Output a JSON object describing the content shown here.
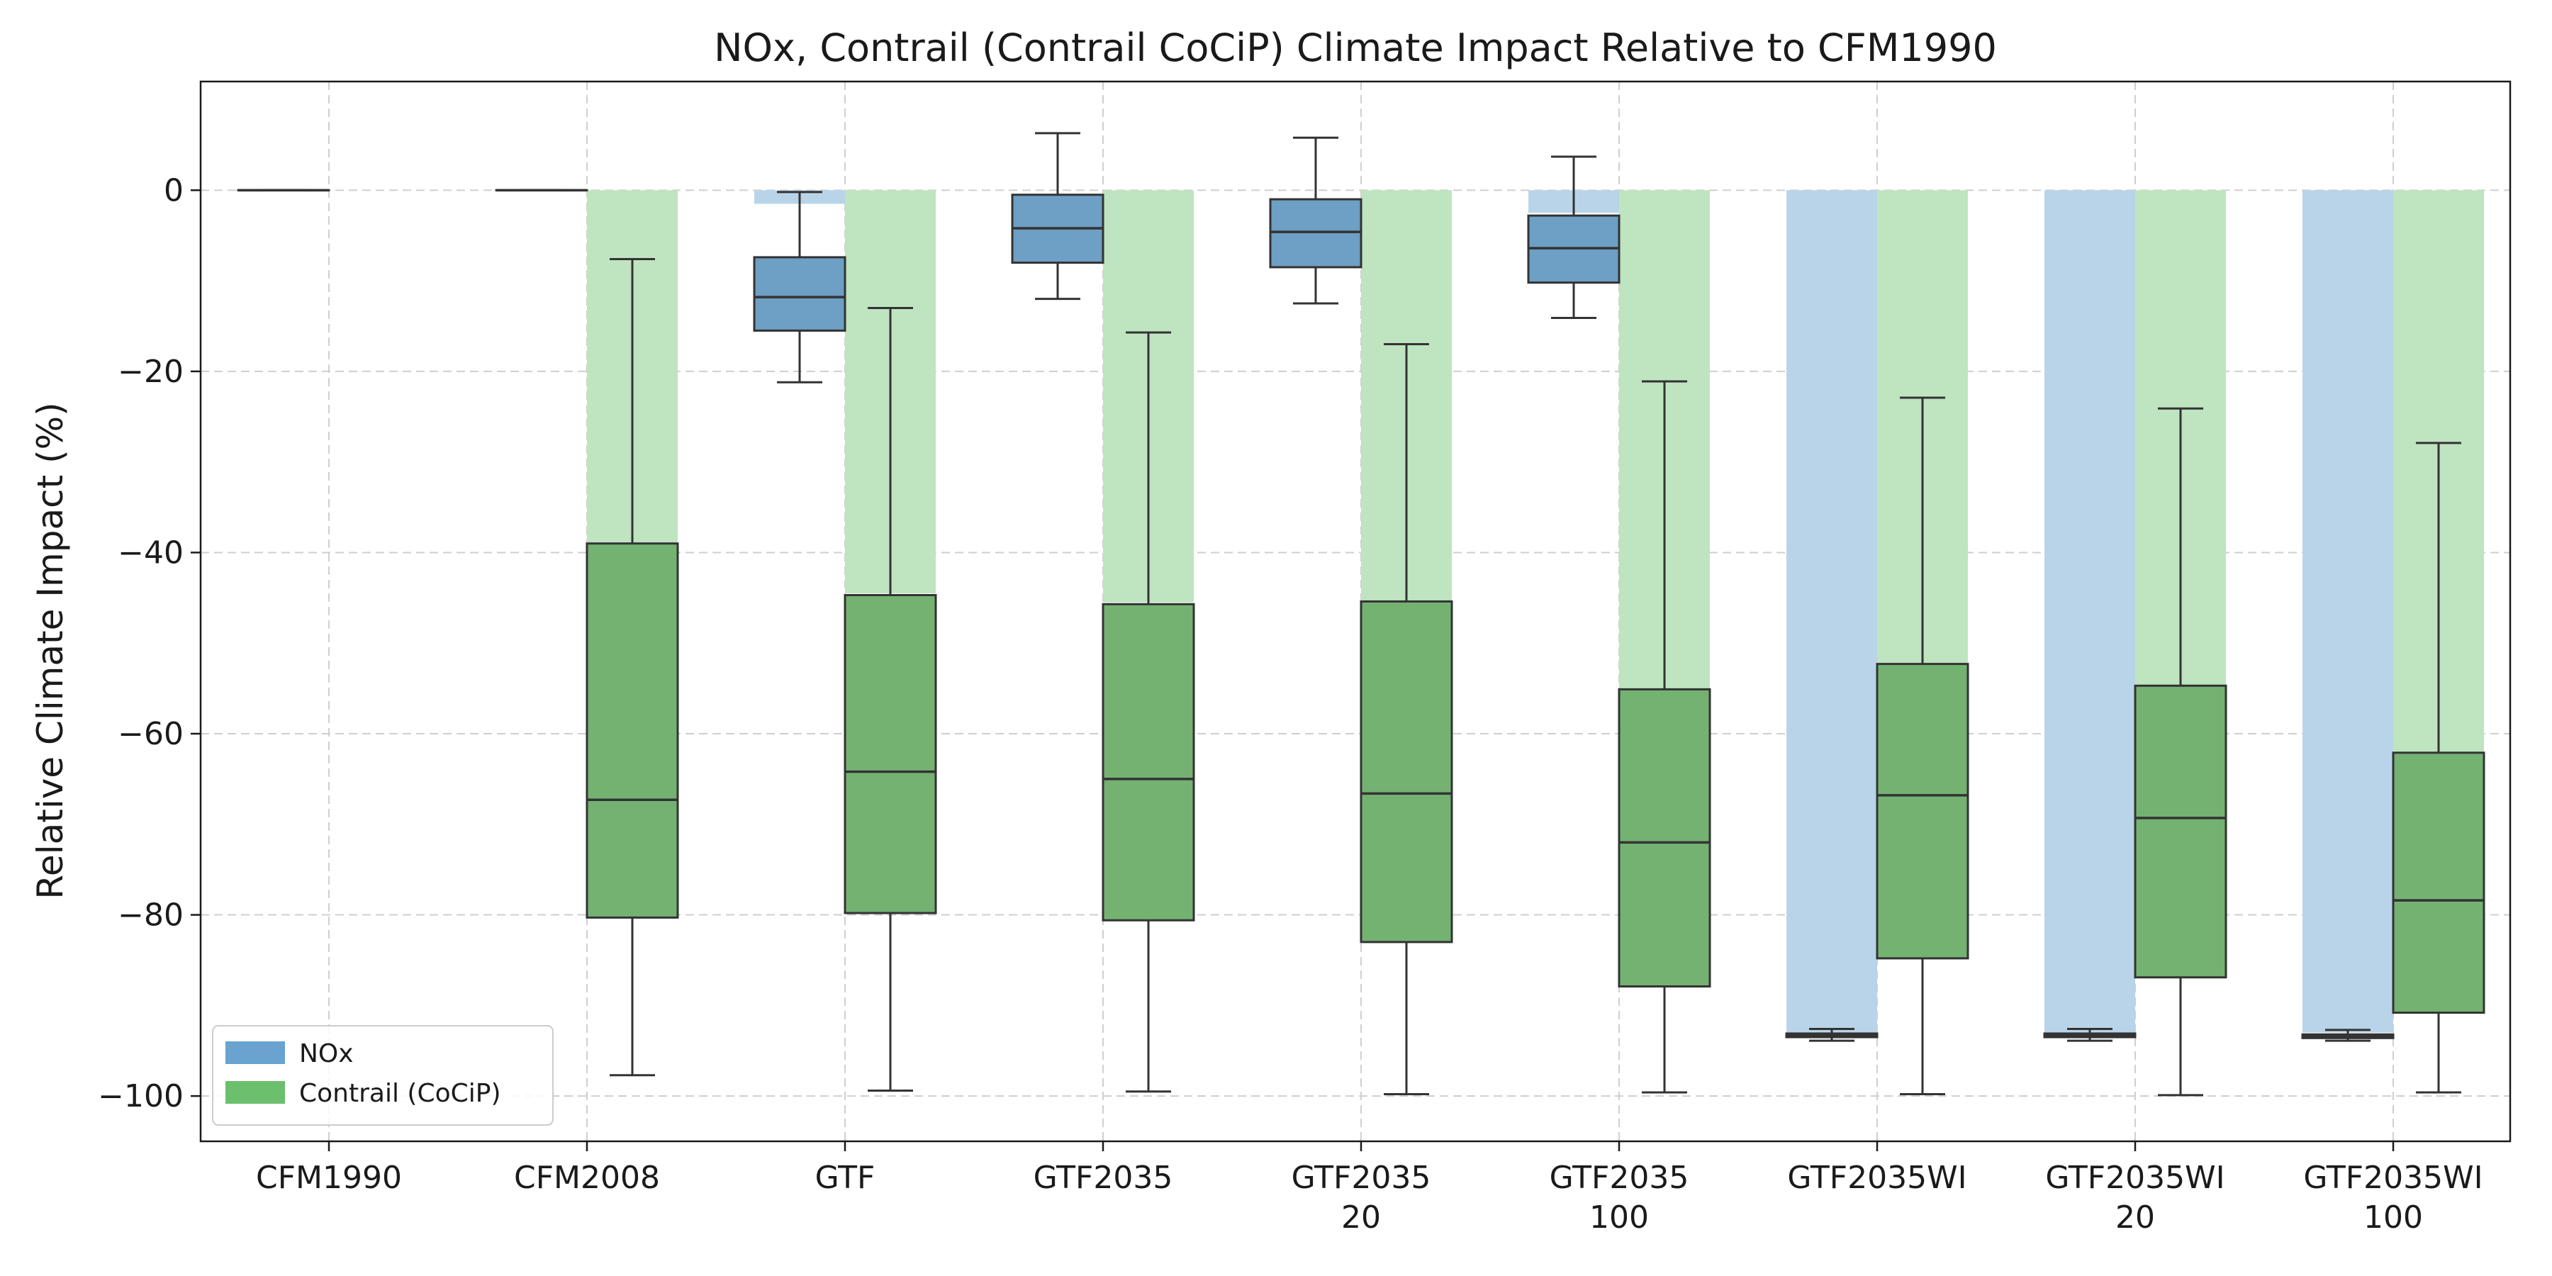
{
  "chart_data": {
    "type": "box",
    "title": "NOx, Contrail (Contrail CoCiP) Climate Impact Relative to CFM1990",
    "ylabel": "Relative Climate Impact (%)",
    "xlabel": "",
    "ylim": [
      -105,
      12
    ],
    "yticks": [
      0,
      -20,
      -40,
      -60,
      -80,
      -100
    ],
    "ytick_labels": [
      "0",
      "−20",
      "−40",
      "−60",
      "−80",
      "−100"
    ],
    "grid": true,
    "legend_position": "lower-left",
    "categories": [
      [
        "CFM1990"
      ],
      [
        "CFM2008"
      ],
      [
        "GTF"
      ],
      [
        "GTF2035"
      ],
      [
        "GTF2035",
        "20"
      ],
      [
        "GTF2035",
        "100"
      ],
      [
        "GTF2035WI"
      ],
      [
        "GTF2035WI",
        "20"
      ],
      [
        "GTF2035WI",
        "100"
      ]
    ],
    "series": [
      {
        "name": "NOx",
        "legend_color": "#6aa3d0",
        "box_color": "#6e9fc4",
        "bar_color": "#b9d4e8",
        "bars": [
          0,
          0,
          -1.5,
          0,
          0,
          -2.5,
          -93,
          -93,
          -93
        ],
        "boxes": [
          {
            "whislo": 0,
            "q1": 0,
            "med": 0,
            "q3": 0,
            "whishi": 0
          },
          {
            "whislo": 0,
            "q1": 0,
            "med": 0,
            "q3": 0,
            "whishi": 0
          },
          {
            "whislo": -21.2,
            "q1": -15.5,
            "med": -11.8,
            "q3": -7.4,
            "whishi": -0.2
          },
          {
            "whislo": -12.0,
            "q1": -8.0,
            "med": -4.2,
            "q3": -0.5,
            "whishi": 6.3
          },
          {
            "whislo": -12.5,
            "q1": -8.5,
            "med": -4.6,
            "q3": -1.0,
            "whishi": 5.8
          },
          {
            "whislo": -14.1,
            "q1": -10.2,
            "med": -6.4,
            "q3": -2.8,
            "whishi": 3.7
          },
          {
            "whislo": -93.9,
            "q1": -93.5,
            "med": -93.3,
            "q3": -93.1,
            "whishi": -92.6
          },
          {
            "whislo": -93.9,
            "q1": -93.5,
            "med": -93.3,
            "q3": -93.1,
            "whishi": -92.6
          },
          {
            "whislo": -93.9,
            "q1": -93.6,
            "med": -93.4,
            "q3": -93.2,
            "whishi": -92.7
          }
        ]
      },
      {
        "name": "Contrail (CoCiP)",
        "legend_color": "#6cbf6c",
        "box_color": "#74b272",
        "bar_color": "#bfe4c0",
        "bars": [
          null,
          -39,
          -44.5,
          -45.5,
          -45.3,
          -55,
          -52.3,
          -54.7,
          -62
        ],
        "boxes": [
          null,
          {
            "whislo": -97.7,
            "q1": -80.3,
            "med": -67.3,
            "q3": -39.0,
            "whishi": -7.6
          },
          {
            "whislo": -99.4,
            "q1": -79.8,
            "med": -64.2,
            "q3": -44.7,
            "whishi": -13.0
          },
          {
            "whislo": -99.5,
            "q1": -80.6,
            "med": -65.0,
            "q3": -45.7,
            "whishi": -15.7
          },
          {
            "whislo": -99.8,
            "q1": -83.0,
            "med": -66.6,
            "q3": -45.4,
            "whishi": -17.0
          },
          {
            "whislo": -99.6,
            "q1": -87.9,
            "med": -72.0,
            "q3": -55.1,
            "whishi": -21.1
          },
          {
            "whislo": -99.8,
            "q1": -84.8,
            "med": -66.8,
            "q3": -52.3,
            "whishi": -22.9
          },
          {
            "whislo": -99.9,
            "q1": -86.9,
            "med": -69.3,
            "q3": -54.7,
            "whishi": -24.1
          },
          {
            "whislo": -99.6,
            "q1": -90.8,
            "med": -78.4,
            "q3": -62.1,
            "whishi": -27.9
          }
        ]
      }
    ]
  }
}
